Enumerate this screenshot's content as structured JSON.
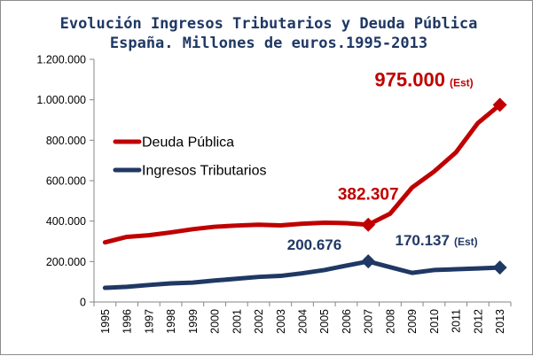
{
  "chart_data": {
    "type": "line",
    "title": "Evolución Ingresos Tributarios y Deuda Pública",
    "subtitle": "España. Millones de euros.1995-2013",
    "xlabel": "",
    "ylabel": "",
    "categories": [
      "1995",
      "1996",
      "1997",
      "1998",
      "1999",
      "2000",
      "2001",
      "2002",
      "2003",
      "2004",
      "2005",
      "2006",
      "2007",
      "2008",
      "2009",
      "2010",
      "2011",
      "2012",
      "2013"
    ],
    "ylim": [
      0,
      1200000
    ],
    "yticks": [
      0,
      200000,
      400000,
      600000,
      800000,
      1000000,
      1200000
    ],
    "ytick_labels": [
      "0",
      "200.000",
      "400.000",
      "600.000",
      "800.000",
      "1.000.000",
      "1.200.000"
    ],
    "grid": false,
    "legend_position": "left",
    "series": [
      {
        "name": "Deuda Pública",
        "color": "#c00000",
        "values": [
          295000,
          322000,
          330000,
          344000,
          360000,
          372000,
          378000,
          382000,
          379000,
          387000,
          392000,
          390000,
          382307,
          437000,
          566000,
          645000,
          740000,
          885000,
          975000
        ]
      },
      {
        "name": "Ingresos Tributarios",
        "color": "#1f3864",
        "values": [
          70000,
          75000,
          84000,
          92000,
          96000,
          106000,
          115000,
          124000,
          129000,
          142000,
          158000,
          180000,
          200676,
          172000,
          144000,
          158000,
          162000,
          166000,
          170137
        ]
      }
    ],
    "annotations": [
      {
        "series": 0,
        "index": 12,
        "label": "382.307",
        "suffix": ""
      },
      {
        "series": 0,
        "index": 18,
        "label": "975.000",
        "suffix": "(Est)"
      },
      {
        "series": 1,
        "index": 12,
        "label": "200.676",
        "suffix": ""
      },
      {
        "series": 1,
        "index": 18,
        "label": "170.137",
        "suffix": "(Est)"
      }
    ]
  }
}
